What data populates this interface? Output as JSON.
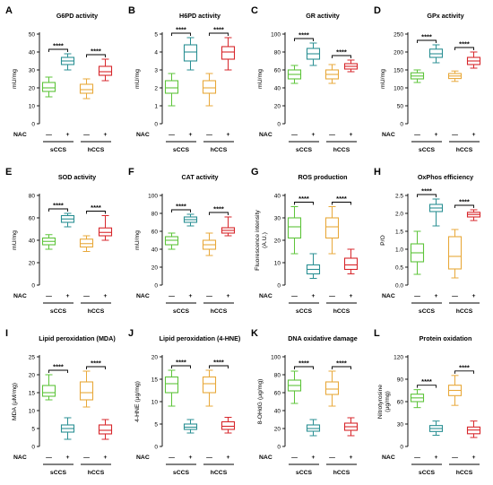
{
  "colors": {
    "sCCS_ctrl": "#5dc43a",
    "sCCS_nac": "#2a8f93",
    "hCCS_ctrl": "#e8a83a",
    "hCCS_nac": "#d7262b",
    "text": "#000000"
  },
  "row_labels": {
    "nac": "NAC",
    "minus": "—",
    "plus": "+"
  },
  "significance": "****",
  "groups": [
    "sCCS",
    "hCCS"
  ],
  "chart_data": [
    {
      "letter": "A",
      "type": "boxplot",
      "title": "G6PD activity",
      "ylabel": "mU/mg",
      "ylim": [
        0,
        50
      ],
      "yticks": [
        "0",
        "10",
        "20",
        "30",
        "40",
        "50"
      ],
      "boxes": [
        {
          "min": 15,
          "q1": 18,
          "median": 20,
          "q3": 23,
          "max": 26
        },
        {
          "min": 30,
          "q1": 33,
          "median": 35,
          "q3": 37,
          "max": 39
        },
        {
          "min": 14,
          "q1": 17,
          "median": 19,
          "q3": 22,
          "max": 25
        },
        {
          "min": 24,
          "q1": 27,
          "median": 29,
          "q3": 32,
          "max": 36
        }
      ]
    },
    {
      "letter": "B",
      "type": "boxplot",
      "title": "H6PD activity",
      "ylabel": "mU/mg",
      "ylim": [
        0,
        5
      ],
      "yticks": [
        "0",
        "1",
        "2",
        "3",
        "4",
        "5"
      ],
      "boxes": [
        {
          "min": 1.0,
          "q1": 1.7,
          "median": 2.0,
          "q3": 2.4,
          "max": 2.8
        },
        {
          "min": 3.0,
          "q1": 3.5,
          "median": 4.0,
          "q3": 4.4,
          "max": 4.8
        },
        {
          "min": 1.0,
          "q1": 1.7,
          "median": 2.0,
          "q3": 2.4,
          "max": 2.8
        },
        {
          "min": 3.0,
          "q1": 3.6,
          "median": 4.0,
          "q3": 4.3,
          "max": 4.8
        }
      ]
    },
    {
      "letter": "C",
      "type": "boxplot",
      "title": "GR activity",
      "ylabel": "mU/mg",
      "ylim": [
        0,
        100
      ],
      "yticks": [
        "0",
        "20",
        "40",
        "60",
        "80",
        "100"
      ],
      "boxes": [
        {
          "min": 45,
          "q1": 50,
          "median": 55,
          "q3": 60,
          "max": 65
        },
        {
          "min": 65,
          "q1": 72,
          "median": 78,
          "q3": 84,
          "max": 90
        },
        {
          "min": 45,
          "q1": 50,
          "median": 55,
          "q3": 60,
          "max": 66
        },
        {
          "min": 58,
          "q1": 61,
          "median": 64,
          "q3": 67,
          "max": 71
        }
      ]
    },
    {
      "letter": "D",
      "type": "boxplot",
      "title": "GPx activity",
      "ylabel": "mU/mg",
      "ylim": [
        0,
        250
      ],
      "yticks": [
        "0",
        "50",
        "100",
        "150",
        "200",
        "250"
      ],
      "boxes": [
        {
          "min": 115,
          "q1": 125,
          "median": 133,
          "q3": 142,
          "max": 150
        },
        {
          "min": 170,
          "q1": 185,
          "median": 195,
          "q3": 208,
          "max": 220
        },
        {
          "min": 118,
          "q1": 126,
          "median": 133,
          "q3": 140,
          "max": 147
        },
        {
          "min": 155,
          "q1": 165,
          "median": 175,
          "q3": 185,
          "max": 200
        }
      ]
    },
    {
      "letter": "E",
      "type": "boxplot",
      "title": "SOD activity",
      "ylabel": "mU/mg",
      "ylim": [
        0,
        80
      ],
      "yticks": [
        "0",
        "20",
        "40",
        "60",
        "80"
      ],
      "boxes": [
        {
          "min": 32,
          "q1": 36,
          "median": 39,
          "q3": 42,
          "max": 45
        },
        {
          "min": 52,
          "q1": 56,
          "median": 59,
          "q3": 62,
          "max": 64
        },
        {
          "min": 30,
          "q1": 34,
          "median": 37,
          "q3": 41,
          "max": 44
        },
        {
          "min": 40,
          "q1": 44,
          "median": 47,
          "q3": 51,
          "max": 62
        }
      ]
    },
    {
      "letter": "F",
      "type": "boxplot",
      "title": "CAT activity",
      "ylabel": "mU/mg",
      "ylim": [
        0,
        100
      ],
      "yticks": [
        "0",
        "20",
        "40",
        "60",
        "80",
        "100"
      ],
      "boxes": [
        {
          "min": 40,
          "q1": 45,
          "median": 50,
          "q3": 54,
          "max": 58
        },
        {
          "min": 66,
          "q1": 70,
          "median": 73,
          "q3": 76,
          "max": 79
        },
        {
          "min": 33,
          "q1": 40,
          "median": 45,
          "q3": 50,
          "max": 58
        },
        {
          "min": 55,
          "q1": 58,
          "median": 61,
          "q3": 64,
          "max": 76
        }
      ]
    },
    {
      "letter": "G",
      "type": "boxplot",
      "title": "ROS production",
      "ylabel": "Fluorescence intensity (A.U.)",
      "ylim": [
        0,
        40
      ],
      "yticks": [
        "0",
        "10",
        "20",
        "30",
        "40"
      ],
      "boxes": [
        {
          "min": 14,
          "q1": 21,
          "median": 26,
          "q3": 30,
          "max": 35
        },
        {
          "min": 3,
          "q1": 5,
          "median": 7,
          "q3": 9,
          "max": 14
        },
        {
          "min": 14,
          "q1": 21,
          "median": 26,
          "q3": 30,
          "max": 35
        },
        {
          "min": 5,
          "q1": 7,
          "median": 9,
          "q3": 12,
          "max": 16
        }
      ]
    },
    {
      "letter": "H",
      "type": "boxplot",
      "title": "OxPhos efficiency",
      "ylabel": "P/O",
      "ylim": [
        0,
        2.5
      ],
      "yticks": [
        "0.0",
        "0.5",
        "1.0",
        "1.5",
        "2.0",
        "2.5"
      ],
      "boxes": [
        {
          "min": 0.3,
          "q1": 0.65,
          "median": 0.9,
          "q3": 1.15,
          "max": 1.5
        },
        {
          "min": 1.65,
          "q1": 2.05,
          "median": 2.15,
          "q3": 2.25,
          "max": 2.4
        },
        {
          "min": 0.2,
          "q1": 0.45,
          "median": 0.8,
          "q3": 1.35,
          "max": 1.55
        },
        {
          "min": 1.8,
          "q1": 1.9,
          "median": 1.97,
          "q3": 2.03,
          "max": 2.1
        }
      ]
    },
    {
      "letter": "I",
      "type": "boxplot",
      "title": "Lipid peroxidation (MDA)",
      "ylabel": "MDA (μM/mg)",
      "ylim": [
        0,
        25
      ],
      "yticks": [
        "0",
        "5",
        "10",
        "15",
        "20",
        "25"
      ],
      "boxes": [
        {
          "min": 13,
          "q1": 14,
          "median": 15,
          "q3": 17,
          "max": 20
        },
        {
          "min": 2,
          "q1": 4,
          "median": 5,
          "q3": 6,
          "max": 8
        },
        {
          "min": 11,
          "q1": 13,
          "median": 15,
          "q3": 18,
          "max": 21
        },
        {
          "min": 2,
          "q1": 3.5,
          "median": 4.5,
          "q3": 6,
          "max": 7.5
        }
      ]
    },
    {
      "letter": "J",
      "type": "boxplot",
      "title": "Lipid peroxidation (4-HNE)",
      "ylabel": "4-HNE (μg/mg)",
      "ylim": [
        0,
        20
      ],
      "yticks": [
        "0",
        "5",
        "10",
        "15",
        "20"
      ],
      "boxes": [
        {
          "min": 9,
          "q1": 12,
          "median": 14,
          "q3": 15.5,
          "max": 17
        },
        {
          "min": 3,
          "q1": 3.8,
          "median": 4.3,
          "q3": 5,
          "max": 6
        },
        {
          "min": 9,
          "q1": 12,
          "median": 14,
          "q3": 15.5,
          "max": 17
        },
        {
          "min": 3,
          "q1": 3.8,
          "median": 4.5,
          "q3": 5.5,
          "max": 6.5
        }
      ]
    },
    {
      "letter": "K",
      "type": "boxplot",
      "title": "DNA oxidative damage",
      "ylabel": "8-OHdG (μg/mg)",
      "ylim": [
        0,
        100
      ],
      "yticks": [
        "0",
        "20",
        "40",
        "60",
        "80",
        "100"
      ],
      "boxes": [
        {
          "min": 48,
          "q1": 62,
          "median": 68,
          "q3": 74,
          "max": 84
        },
        {
          "min": 12,
          "q1": 17,
          "median": 20,
          "q3": 24,
          "max": 30
        },
        {
          "min": 45,
          "q1": 58,
          "median": 64,
          "q3": 72,
          "max": 84
        },
        {
          "min": 12,
          "q1": 18,
          "median": 22,
          "q3": 26,
          "max": 32
        }
      ]
    },
    {
      "letter": "L",
      "type": "boxplot",
      "title": "Protein oxidation",
      "ylabel": "Nitrotyrosine (μg/mg)",
      "ylim": [
        0,
        120
      ],
      "yticks": [
        "0",
        "30",
        "60",
        "90",
        "120"
      ],
      "boxes": [
        {
          "min": 52,
          "q1": 60,
          "median": 65,
          "q3": 70,
          "max": 76
        },
        {
          "min": 15,
          "q1": 20,
          "median": 24,
          "q3": 28,
          "max": 34
        },
        {
          "min": 55,
          "q1": 68,
          "median": 75,
          "q3": 82,
          "max": 95
        },
        {
          "min": 12,
          "q1": 17,
          "median": 22,
          "q3": 26,
          "max": 34
        }
      ]
    }
  ]
}
